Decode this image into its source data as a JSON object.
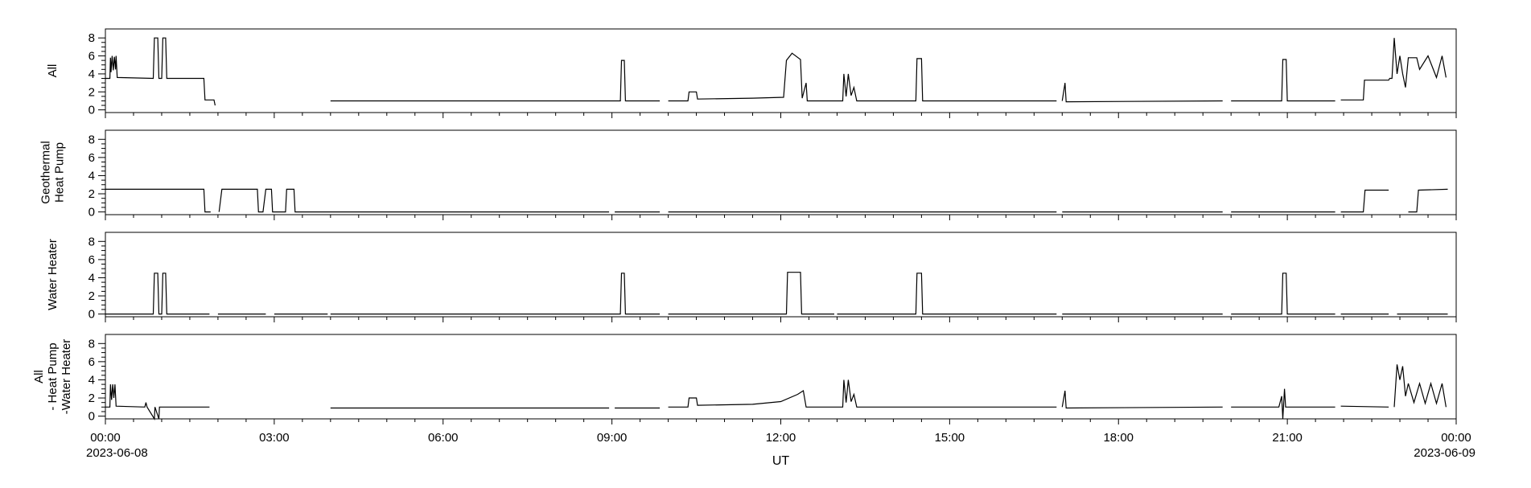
{
  "chart_data": {
    "type": "line",
    "xlabel": "UT",
    "x_ticks": [
      "00:00",
      "03:00",
      "06:00",
      "09:00",
      "12:00",
      "15:00",
      "18:00",
      "21:00",
      "00:00"
    ],
    "x_start_date": "2023-06-08",
    "x_end_date": "2023-06-09",
    "xlim_hours": [
      0,
      24
    ],
    "y_ticks": [
      "0",
      "2",
      "4",
      "6",
      "8"
    ],
    "ylim": [
      -0.3,
      9
    ],
    "panels": [
      {
        "ylabel": [
          "All"
        ],
        "series": [
          {
            "t": 0.0,
            "v": 3.5
          },
          {
            "t": 0.08,
            "v": 3.5
          },
          {
            "t": 0.09,
            "v": 5.8
          },
          {
            "t": 0.1,
            "v": 4.2
          },
          {
            "t": 0.12,
            "v": 6
          },
          {
            "t": 0.14,
            "v": 4.4
          },
          {
            "t": 0.16,
            "v": 5.9
          },
          {
            "t": 0.18,
            "v": 4.5
          },
          {
            "t": 0.19,
            "v": 6
          },
          {
            "t": 0.21,
            "v": 3.6
          },
          {
            "t": 0.85,
            "v": 3.5
          },
          {
            "t": 0.87,
            "v": 8
          },
          {
            "t": 0.93,
            "v": 8
          },
          {
            "t": 0.95,
            "v": 3.5
          },
          {
            "t": 1.0,
            "v": 3.5
          },
          {
            "t": 1.02,
            "v": 8
          },
          {
            "t": 1.07,
            "v": 8
          },
          {
            "t": 1.09,
            "v": 3.5
          },
          {
            "t": 1.75,
            "v": 3.5
          },
          {
            "t": 1.77,
            "v": 1.1
          },
          {
            "t": 1.93,
            "v": 1.1
          },
          {
            "t": 1.95,
            "v": 0.5
          },
          {
            "t": 1.96,
            "v": null
          },
          {
            "t": 4.0,
            "v": 1.0
          },
          {
            "t": 9.15,
            "v": 1.0
          },
          {
            "t": 9.17,
            "v": 5.5
          },
          {
            "t": 9.22,
            "v": 5.5
          },
          {
            "t": 9.24,
            "v": 1.0
          },
          {
            "t": 9.85,
            "v": 1.0
          },
          {
            "t": 9.86,
            "v": null
          },
          {
            "t": 10.0,
            "v": 1.0
          },
          {
            "t": 10.35,
            "v": 1.0
          },
          {
            "t": 10.37,
            "v": 2.0
          },
          {
            "t": 10.5,
            "v": 2.0
          },
          {
            "t": 10.52,
            "v": 1.2
          },
          {
            "t": 11.5,
            "v": 1.3
          },
          {
            "t": 12.05,
            "v": 1.4
          },
          {
            "t": 12.1,
            "v": 5.5
          },
          {
            "t": 12.2,
            "v": 6.3
          },
          {
            "t": 12.35,
            "v": 5.6
          },
          {
            "t": 12.38,
            "v": 1.3
          },
          {
            "t": 12.45,
            "v": 3
          },
          {
            "t": 12.47,
            "v": 1.0
          },
          {
            "t": 13.1,
            "v": 1.0
          },
          {
            "t": 13.12,
            "v": 4
          },
          {
            "t": 13.16,
            "v": 1.5
          },
          {
            "t": 13.2,
            "v": 4
          },
          {
            "t": 13.25,
            "v": 1.6
          },
          {
            "t": 13.3,
            "v": 2.5
          },
          {
            "t": 13.35,
            "v": 1.0
          },
          {
            "t": 14.4,
            "v": 1.0
          },
          {
            "t": 14.42,
            "v": 5.7
          },
          {
            "t": 14.5,
            "v": 5.7
          },
          {
            "t": 14.52,
            "v": 1.0
          },
          {
            "t": 16.9,
            "v": 1.0
          },
          {
            "t": 16.91,
            "v": null
          },
          {
            "t": 17.0,
            "v": 1.0
          },
          {
            "t": 17.05,
            "v": 3
          },
          {
            "t": 17.07,
            "v": 0.9
          },
          {
            "t": 19.85,
            "v": 1.0
          },
          {
            "t": 19.86,
            "v": null
          },
          {
            "t": 20.0,
            "v": 1.0
          },
          {
            "t": 20.9,
            "v": 1.0
          },
          {
            "t": 20.92,
            "v": 5.6
          },
          {
            "t": 20.98,
            "v": 5.6
          },
          {
            "t": 21.0,
            "v": 1.0
          },
          {
            "t": 21.85,
            "v": 1.0
          },
          {
            "t": 21.86,
            "v": null
          },
          {
            "t": 21.95,
            "v": 1.1
          },
          {
            "t": 22.35,
            "v": 1.1
          },
          {
            "t": 22.37,
            "v": 3.3
          },
          {
            "t": 22.8,
            "v": 3.3
          },
          {
            "t": 22.82,
            "v": 3.5
          },
          {
            "t": 22.86,
            "v": 3.5
          },
          {
            "t": 22.9,
            "v": 8
          },
          {
            "t": 22.95,
            "v": 4
          },
          {
            "t": 23.0,
            "v": 6
          },
          {
            "t": 23.05,
            "v": 4
          },
          {
            "t": 23.1,
            "v": 2.5
          },
          {
            "t": 23.15,
            "v": 5.8
          },
          {
            "t": 23.3,
            "v": 5.8
          },
          {
            "t": 23.35,
            "v": 4.5
          },
          {
            "t": 23.5,
            "v": 6
          },
          {
            "t": 23.65,
            "v": 3.6
          },
          {
            "t": 23.75,
            "v": 6
          },
          {
            "t": 23.82,
            "v": 3.6
          }
        ]
      },
      {
        "ylabel": [
          "Geothermal",
          "Heat Pump"
        ],
        "series": [
          {
            "t": 0.0,
            "v": 2.5
          },
          {
            "t": 1.75,
            "v": 2.5
          },
          {
            "t": 1.77,
            "v": 0
          },
          {
            "t": 1.87,
            "v": 0
          },
          {
            "t": 1.88,
            "v": null
          },
          {
            "t": 2.02,
            "v": 0
          },
          {
            "t": 2.07,
            "v": 2.5
          },
          {
            "t": 2.7,
            "v": 2.5
          },
          {
            "t": 2.72,
            "v": 0
          },
          {
            "t": 2.8,
            "v": 0
          },
          {
            "t": 2.85,
            "v": 2.5
          },
          {
            "t": 2.95,
            "v": 2.5
          },
          {
            "t": 2.97,
            "v": 0
          },
          {
            "t": 3.2,
            "v": 0
          },
          {
            "t": 3.22,
            "v": 2.5
          },
          {
            "t": 3.35,
            "v": 2.5
          },
          {
            "t": 3.37,
            "v": 0
          },
          {
            "t": 8.95,
            "v": 0
          },
          {
            "t": 8.96,
            "v": null
          },
          {
            "t": 9.05,
            "v": 0
          },
          {
            "t": 9.85,
            "v": 0
          },
          {
            "t": 9.86,
            "v": null
          },
          {
            "t": 10.0,
            "v": 0
          },
          {
            "t": 16.9,
            "v": 0
          },
          {
            "t": 16.91,
            "v": null
          },
          {
            "t": 17.0,
            "v": 0
          },
          {
            "t": 19.85,
            "v": 0
          },
          {
            "t": 19.86,
            "v": null
          },
          {
            "t": 20.0,
            "v": 0
          },
          {
            "t": 21.85,
            "v": 0
          },
          {
            "t": 21.86,
            "v": null
          },
          {
            "t": 21.95,
            "v": 0
          },
          {
            "t": 22.35,
            "v": 0
          },
          {
            "t": 22.38,
            "v": 2.4
          },
          {
            "t": 22.8,
            "v": 2.4
          },
          {
            "t": 22.81,
            "v": null
          },
          {
            "t": 23.15,
            "v": 0
          },
          {
            "t": 23.3,
            "v": 0
          },
          {
            "t": 23.33,
            "v": 2.4
          },
          {
            "t": 23.85,
            "v": 2.5
          }
        ]
      },
      {
        "ylabel": [
          "Water Heater"
        ],
        "series": [
          {
            "t": 0.0,
            "v": 0
          },
          {
            "t": 0.85,
            "v": 0
          },
          {
            "t": 0.87,
            "v": 4.5
          },
          {
            "t": 0.93,
            "v": 4.5
          },
          {
            "t": 0.95,
            "v": 0
          },
          {
            "t": 1.0,
            "v": 0
          },
          {
            "t": 1.02,
            "v": 4.5
          },
          {
            "t": 1.07,
            "v": 4.5
          },
          {
            "t": 1.09,
            "v": 0
          },
          {
            "t": 1.85,
            "v": 0
          },
          {
            "t": 1.86,
            "v": null
          },
          {
            "t": 2.0,
            "v": 0
          },
          {
            "t": 2.85,
            "v": 0
          },
          {
            "t": 2.86,
            "v": null
          },
          {
            "t": 3.0,
            "v": 0
          },
          {
            "t": 3.95,
            "v": 0
          },
          {
            "t": 3.96,
            "v": null
          },
          {
            "t": 4.0,
            "v": 0
          },
          {
            "t": 9.15,
            "v": 0
          },
          {
            "t": 9.17,
            "v": 4.5
          },
          {
            "t": 9.22,
            "v": 4.5
          },
          {
            "t": 9.24,
            "v": 0
          },
          {
            "t": 9.85,
            "v": 0
          },
          {
            "t": 9.86,
            "v": null
          },
          {
            "t": 10.0,
            "v": 0
          },
          {
            "t": 12.1,
            "v": 0
          },
          {
            "t": 12.12,
            "v": 4.6
          },
          {
            "t": 12.35,
            "v": 4.6
          },
          {
            "t": 12.37,
            "v": 0
          },
          {
            "t": 12.95,
            "v": 0
          },
          {
            "t": 12.96,
            "v": null
          },
          {
            "t": 13.0,
            "v": 0
          },
          {
            "t": 14.4,
            "v": 0
          },
          {
            "t": 14.42,
            "v": 4.5
          },
          {
            "t": 14.5,
            "v": 4.5
          },
          {
            "t": 14.52,
            "v": 0
          },
          {
            "t": 16.9,
            "v": 0
          },
          {
            "t": 16.91,
            "v": null
          },
          {
            "t": 17.0,
            "v": 0
          },
          {
            "t": 19.85,
            "v": 0
          },
          {
            "t": 19.86,
            "v": null
          },
          {
            "t": 20.0,
            "v": 0
          },
          {
            "t": 20.9,
            "v": 0
          },
          {
            "t": 20.92,
            "v": 4.5
          },
          {
            "t": 20.98,
            "v": 4.5
          },
          {
            "t": 21.0,
            "v": 0
          },
          {
            "t": 21.85,
            "v": 0
          },
          {
            "t": 21.86,
            "v": null
          },
          {
            "t": 21.95,
            "v": 0
          },
          {
            "t": 22.8,
            "v": 0
          },
          {
            "t": 22.81,
            "v": null
          },
          {
            "t": 22.95,
            "v": 0
          },
          {
            "t": 23.85,
            "v": 0
          }
        ]
      },
      {
        "ylabel": [
          "All",
          "- Heat Pump",
          "-Water Heater"
        ],
        "series": [
          {
            "t": 0.0,
            "v": 1.0
          },
          {
            "t": 0.08,
            "v": 1.0
          },
          {
            "t": 0.09,
            "v": 3.5
          },
          {
            "t": 0.11,
            "v": 1.8
          },
          {
            "t": 0.13,
            "v": 3.5
          },
          {
            "t": 0.15,
            "v": 2
          },
          {
            "t": 0.17,
            "v": 3.5
          },
          {
            "t": 0.19,
            "v": 1.1
          },
          {
            "t": 0.7,
            "v": 1.0
          },
          {
            "t": 0.72,
            "v": 1.5
          },
          {
            "t": 0.74,
            "v": 1.0
          },
          {
            "t": 0.87,
            "v": -0.3
          },
          {
            "t": 0.88,
            "v": 1.0
          },
          {
            "t": 0.95,
            "v": -0.3
          },
          {
            "t": 0.96,
            "v": 1.0
          },
          {
            "t": 1.85,
            "v": 1.0
          },
          {
            "t": 1.86,
            "v": null
          },
          {
            "t": 4.0,
            "v": 0.9
          },
          {
            "t": 8.95,
            "v": 0.9
          },
          {
            "t": 8.96,
            "v": null
          },
          {
            "t": 9.05,
            "v": 0.9
          },
          {
            "t": 9.85,
            "v": 0.9
          },
          {
            "t": 9.86,
            "v": null
          },
          {
            "t": 10.0,
            "v": 1.0
          },
          {
            "t": 10.35,
            "v": 1.0
          },
          {
            "t": 10.37,
            "v": 2.0
          },
          {
            "t": 10.5,
            "v": 2.0
          },
          {
            "t": 10.52,
            "v": 1.2
          },
          {
            "t": 11.5,
            "v": 1.3
          },
          {
            "t": 12.0,
            "v": 1.6
          },
          {
            "t": 12.3,
            "v": 2.4
          },
          {
            "t": 12.4,
            "v": 2.8
          },
          {
            "t": 12.45,
            "v": 1.0
          },
          {
            "t": 13.1,
            "v": 1.0
          },
          {
            "t": 13.12,
            "v": 4
          },
          {
            "t": 13.16,
            "v": 1.5
          },
          {
            "t": 13.2,
            "v": 4
          },
          {
            "t": 13.25,
            "v": 1.6
          },
          {
            "t": 13.3,
            "v": 2.4
          },
          {
            "t": 13.35,
            "v": 1.0
          },
          {
            "t": 16.9,
            "v": 1.0
          },
          {
            "t": 16.91,
            "v": null
          },
          {
            "t": 17.0,
            "v": 1.0
          },
          {
            "t": 17.05,
            "v": 2.8
          },
          {
            "t": 17.07,
            "v": 0.9
          },
          {
            "t": 19.85,
            "v": 1.0
          },
          {
            "t": 19.86,
            "v": null
          },
          {
            "t": 20.0,
            "v": 1.0
          },
          {
            "t": 20.85,
            "v": 1.0
          },
          {
            "t": 20.9,
            "v": 2.2
          },
          {
            "t": 20.92,
            "v": -0.3
          },
          {
            "t": 20.95,
            "v": 3
          },
          {
            "t": 20.97,
            "v": 1.0
          },
          {
            "t": 21.85,
            "v": 1.0
          },
          {
            "t": 21.86,
            "v": null
          },
          {
            "t": 21.95,
            "v": 1.1
          },
          {
            "t": 22.8,
            "v": 1.0
          },
          {
            "t": 22.81,
            "v": null
          },
          {
            "t": 22.9,
            "v": 1.0
          },
          {
            "t": 22.95,
            "v": 5.7
          },
          {
            "t": 23.0,
            "v": 4
          },
          {
            "t": 23.05,
            "v": 5.5
          },
          {
            "t": 23.1,
            "v": 2.2
          },
          {
            "t": 23.15,
            "v": 3.6
          },
          {
            "t": 23.25,
            "v": 1.5
          },
          {
            "t": 23.35,
            "v": 3.6
          },
          {
            "t": 23.45,
            "v": 1.4
          },
          {
            "t": 23.55,
            "v": 3.6
          },
          {
            "t": 23.65,
            "v": 1.4
          },
          {
            "t": 23.75,
            "v": 3.6
          },
          {
            "t": 23.82,
            "v": 1.0
          }
        ]
      }
    ],
    "grid": false,
    "line_color": "#000000"
  }
}
